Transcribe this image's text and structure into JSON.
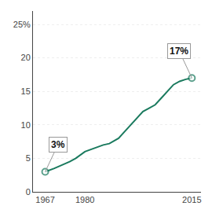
{
  "chart_data": {
    "type": "line",
    "x": [
      1967,
      1970,
      1975,
      1977,
      1980,
      1983,
      1986,
      1988,
      1991,
      1993,
      1995,
      1997,
      1999,
      2001,
      2003,
      2005,
      2007,
      2009,
      2011,
      2013,
      2015
    ],
    "values": [
      3,
      3.5,
      4.5,
      5,
      6,
      6.5,
      7,
      7.2,
      8,
      9,
      10,
      11,
      12,
      12.5,
      13,
      14,
      15,
      16,
      16.5,
      16.8,
      17
    ],
    "color": "#1a7a5e",
    "xlim": [
      1963,
      2018
    ],
    "xticks": [
      1967,
      1980,
      2015
    ],
    "ylim": [
      0,
      27
    ],
    "yticks": [
      0,
      5,
      10,
      15,
      20,
      {
        "value": 25,
        "label": "25%"
      }
    ],
    "grid": "y",
    "annotations": [
      {
        "text": "3%",
        "x": 1967,
        "y": 3
      },
      {
        "text": "17%",
        "x": 2015,
        "y": 17
      }
    ]
  }
}
